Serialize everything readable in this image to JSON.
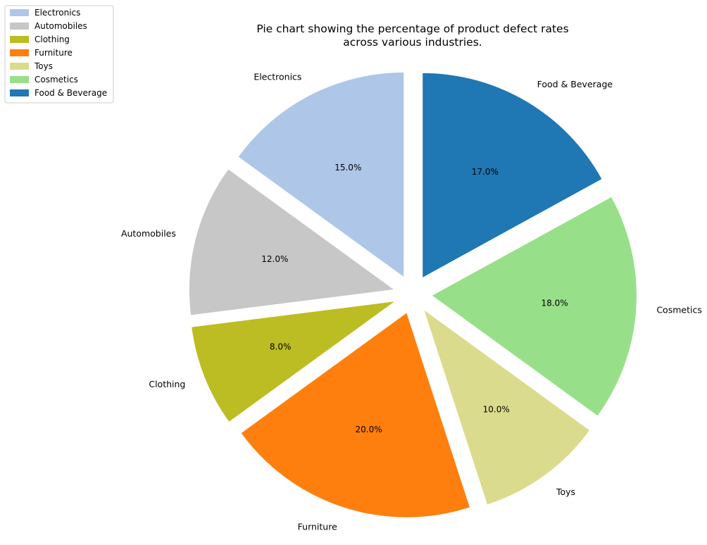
{
  "chart_data": {
    "type": "pie",
    "title_lines": [
      "Pie chart showing the percentage of product defect rates",
      "across various industries."
    ],
    "categories": [
      "Electronics",
      "Automobiles",
      "Clothing",
      "Furniture",
      "Toys",
      "Cosmetics",
      "Food & Beverage"
    ],
    "values": [
      15,
      12,
      8,
      20,
      10,
      18,
      17
    ],
    "value_labels": [
      "15.0%",
      "12.0%",
      "8.0%",
      "20.0%",
      "10.0%",
      "18.0%",
      "17.0%"
    ],
    "colors": [
      "#aec7e8",
      "#c7c7c7",
      "#bcbd22",
      "#ff7f0e",
      "#dbdb8d",
      "#98df8a",
      "#1f77b4"
    ],
    "start_angle_deg": 90,
    "direction": "counterclockwise",
    "legend": {
      "placement": "top-left",
      "entries": [
        "Electronics",
        "Automobiles",
        "Clothing",
        "Furniture",
        "Toys",
        "Cosmetics",
        "Food & Beverage"
      ]
    }
  }
}
